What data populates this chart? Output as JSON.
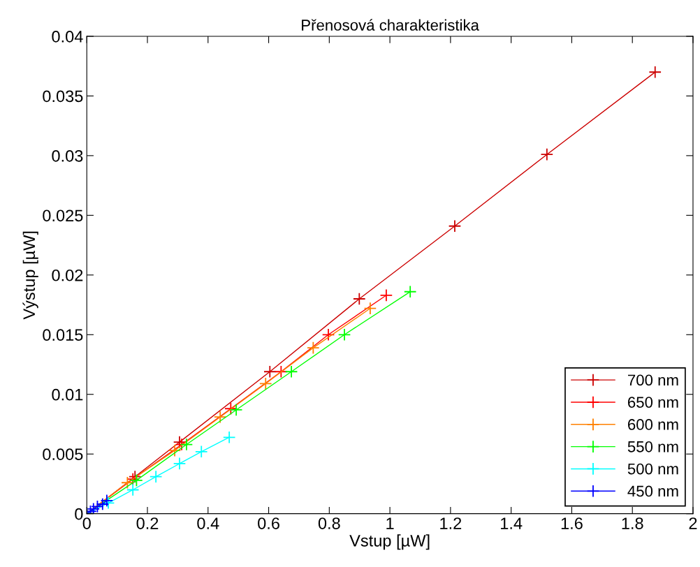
{
  "chart_data": {
    "type": "line",
    "title": "Přenosová charakteristika",
    "xlabel": "Vstup [µW]",
    "ylabel": "Výstup [µW]",
    "xlim": [
      0,
      2
    ],
    "xticks": [
      0,
      0.2,
      0.4,
      0.6,
      0.8,
      1,
      1.2,
      1.4,
      1.6,
      1.8,
      2
    ],
    "ylim": [
      0,
      0.04
    ],
    "yticks": [
      0,
      0.005,
      0.01,
      0.015,
      0.02,
      0.025,
      0.03,
      0.035,
      0.04
    ],
    "grid": false,
    "legend": "bottom right",
    "marker": "cross",
    "line_style": "solid",
    "series": [
      {
        "name": "700 nm",
        "color": "#cc0000",
        "x": [
          0,
          0.159,
          0.306,
          0.604,
          0.899,
          1.214,
          1.518,
          1.875
        ],
        "values": [
          0,
          0.0031,
          0.006,
          0.0119,
          0.018,
          0.0241,
          0.0301,
          0.037
        ]
      },
      {
        "name": "650 nm",
        "color": "#ff0000",
        "x": [
          0,
          0.152,
          0.313,
          0.475,
          0.641,
          0.797,
          0.988
        ],
        "values": [
          0,
          0.0029,
          0.0058,
          0.0088,
          0.0119,
          0.015,
          0.0183
        ]
      },
      {
        "name": "600 nm",
        "color": "#ff8000",
        "x": [
          0,
          0.134,
          0.29,
          0.44,
          0.59,
          0.747,
          0.935
        ],
        "values": [
          0,
          0.0026,
          0.0053,
          0.0081,
          0.0109,
          0.0139,
          0.0172
        ]
      },
      {
        "name": "550 nm",
        "color": "#00ff00",
        "x": [
          0,
          0.164,
          0.329,
          0.493,
          0.675,
          0.85,
          1.067
        ],
        "values": [
          0,
          0.0028,
          0.0058,
          0.0087,
          0.0119,
          0.015,
          0.0186
        ]
      },
      {
        "name": "500 nm",
        "color": "#00ffff",
        "x": [
          0,
          0.071,
          0.152,
          0.228,
          0.306,
          0.378,
          0.47
        ],
        "values": [
          0,
          0.0009,
          0.002,
          0.0031,
          0.0042,
          0.0052,
          0.0064
        ]
      },
      {
        "name": "450 nm",
        "color": "#0000ff",
        "x": [
          0,
          0.012,
          0.022,
          0.035,
          0.052,
          0.066
        ],
        "values": [
          0,
          0.0002,
          0.0004,
          0.0006,
          0.0008,
          0.0011
        ]
      }
    ]
  }
}
